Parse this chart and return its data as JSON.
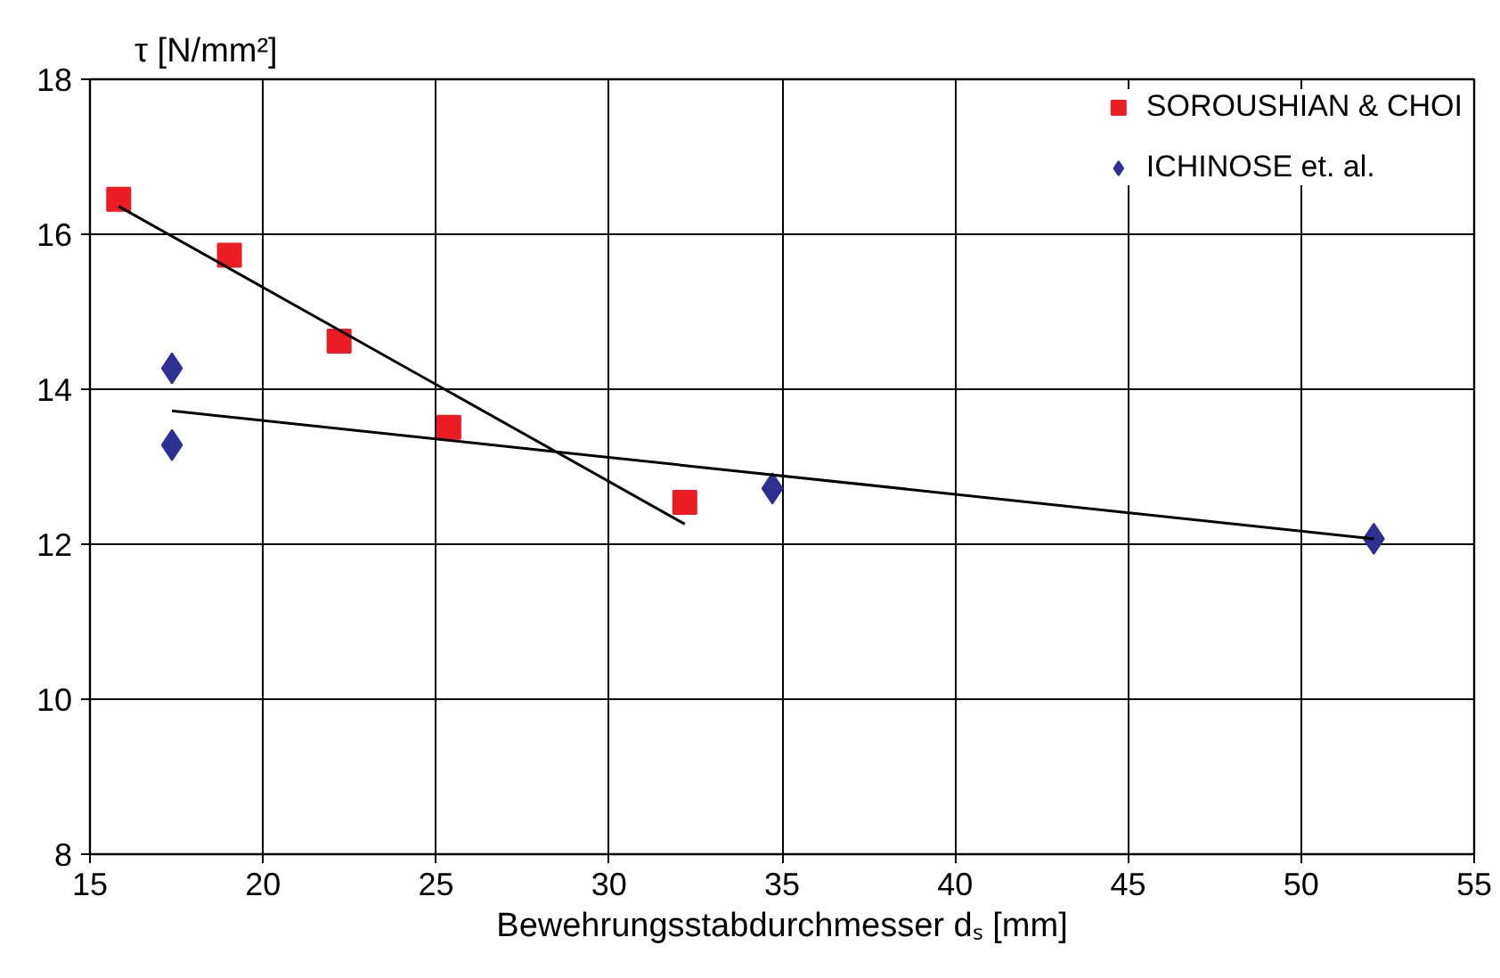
{
  "chart_data": {
    "type": "scatter",
    "xlabel": "Bewehrungsstabdurchmesser dₛ [mm]",
    "ylabel": "τ [N/mm²]",
    "xlim": [
      15,
      55
    ],
    "xticks": [
      15,
      20,
      25,
      30,
      35,
      40,
      45,
      50,
      55
    ],
    "ylim": [
      8,
      18
    ],
    "yticks": [
      8,
      10,
      12,
      14,
      16,
      18
    ],
    "grid": true,
    "legend": "top right",
    "series": [
      {
        "name": "SOROUSHIAN & CHOI",
        "color": "#ed1c24",
        "marker": "square",
        "x": [
          15.83,
          19.03,
          22.2,
          25.37,
          32.19
        ],
        "values": [
          16.45,
          15.73,
          14.62,
          13.51,
          12.54
        ]
      },
      {
        "name": "ICHINOSE et. al.",
        "color": "#2e3192",
        "marker": "diamond",
        "x": [
          17.37,
          17.37,
          34.72,
          52.1
        ],
        "values": [
          14.27,
          13.28,
          12.72,
          12.07
        ]
      },
      {
        "type": "line",
        "color": "#000000",
        "marker": "none",
        "x": [
          15.83,
          32.19
        ],
        "values": [
          16.36,
          12.26
        ]
      },
      {
        "type": "line",
        "color": "#000000",
        "marker": "none",
        "x": [
          17.37,
          52.1
        ],
        "values": [
          13.72,
          12.07
        ]
      }
    ]
  }
}
